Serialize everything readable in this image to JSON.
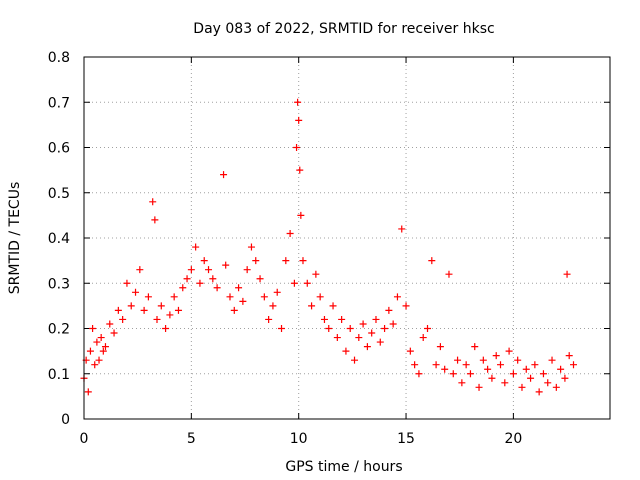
{
  "chart_data": {
    "type": "scatter",
    "title": "Day 083 of 2022, SRMTID for receiver hksc",
    "xlabel": "GPS time / hours",
    "ylabel": "SRMTID / TECUs",
    "xlim": [
      0,
      24.5
    ],
    "ylim": [
      0,
      0.8
    ],
    "x_ticks": [
      0,
      5,
      10,
      15,
      20
    ],
    "x_tick_labels": [
      "0",
      "5",
      "10",
      "15",
      "20"
    ],
    "y_ticks": [
      0,
      0.1,
      0.2,
      0.3,
      0.4,
      0.5,
      0.6,
      0.7,
      0.8
    ],
    "y_tick_labels": [
      "0",
      "0.1",
      "0.2",
      "0.3",
      "0.4",
      "0.5",
      "0.6",
      "0.7",
      "0.8"
    ],
    "grid": true,
    "marker": "+",
    "point_color": "#ff0000",
    "series": [
      {
        "name": "SRMTID",
        "x": [
          0.0,
          0.1,
          0.2,
          0.3,
          0.4,
          0.5,
          0.6,
          0.7,
          0.8,
          0.9,
          1.0,
          1.2,
          1.4,
          1.6,
          1.8,
          2.0,
          2.2,
          2.4,
          2.6,
          2.8,
          3.0,
          3.2,
          3.3,
          3.4,
          3.6,
          3.8,
          4.0,
          4.2,
          4.4,
          4.6,
          4.8,
          5.0,
          5.2,
          5.4,
          5.6,
          5.8,
          6.0,
          6.2,
          6.5,
          6.6,
          6.8,
          7.0,
          7.2,
          7.4,
          7.6,
          7.8,
          8.0,
          8.2,
          8.4,
          8.6,
          8.8,
          9.0,
          9.2,
          9.4,
          9.6,
          9.8,
          9.9,
          9.95,
          10.0,
          10.05,
          10.1,
          10.2,
          10.4,
          10.6,
          10.8,
          11.0,
          11.2,
          11.4,
          11.6,
          11.8,
          12.0,
          12.2,
          12.4,
          12.6,
          12.8,
          13.0,
          13.2,
          13.4,
          13.6,
          13.8,
          14.0,
          14.2,
          14.4,
          14.6,
          14.8,
          15.0,
          15.2,
          15.4,
          15.6,
          15.8,
          16.0,
          16.2,
          16.4,
          16.6,
          16.8,
          17.0,
          17.2,
          17.4,
          17.6,
          17.8,
          18.0,
          18.2,
          18.4,
          18.6,
          18.8,
          19.0,
          19.2,
          19.4,
          19.6,
          19.8,
          20.0,
          20.2,
          20.4,
          20.6,
          20.8,
          21.0,
          21.2,
          21.4,
          21.6,
          21.8,
          22.0,
          22.2,
          22.4,
          22.5,
          22.6,
          22.8
        ],
        "y": [
          0.09,
          0.13,
          0.06,
          0.15,
          0.2,
          0.12,
          0.17,
          0.13,
          0.18,
          0.15,
          0.16,
          0.21,
          0.19,
          0.24,
          0.22,
          0.3,
          0.25,
          0.28,
          0.33,
          0.24,
          0.27,
          0.48,
          0.44,
          0.22,
          0.25,
          0.2,
          0.23,
          0.27,
          0.24,
          0.29,
          0.31,
          0.33,
          0.38,
          0.3,
          0.35,
          0.33,
          0.31,
          0.29,
          0.54,
          0.34,
          0.27,
          0.24,
          0.29,
          0.26,
          0.33,
          0.38,
          0.35,
          0.31,
          0.27,
          0.22,
          0.25,
          0.28,
          0.2,
          0.35,
          0.41,
          0.3,
          0.6,
          0.7,
          0.66,
          0.55,
          0.45,
          0.35,
          0.3,
          0.25,
          0.32,
          0.27,
          0.22,
          0.2,
          0.25,
          0.18,
          0.22,
          0.15,
          0.2,
          0.13,
          0.18,
          0.21,
          0.16,
          0.19,
          0.22,
          0.17,
          0.2,
          0.24,
          0.21,
          0.27,
          0.42,
          0.25,
          0.15,
          0.12,
          0.1,
          0.18,
          0.2,
          0.35,
          0.12,
          0.16,
          0.11,
          0.32,
          0.1,
          0.13,
          0.08,
          0.12,
          0.1,
          0.16,
          0.07,
          0.13,
          0.11,
          0.09,
          0.14,
          0.12,
          0.08,
          0.15,
          0.1,
          0.13,
          0.07,
          0.11,
          0.09,
          0.12,
          0.06,
          0.1,
          0.08,
          0.13,
          0.07,
          0.11,
          0.09,
          0.32,
          0.14,
          0.12
        ]
      }
    ]
  }
}
